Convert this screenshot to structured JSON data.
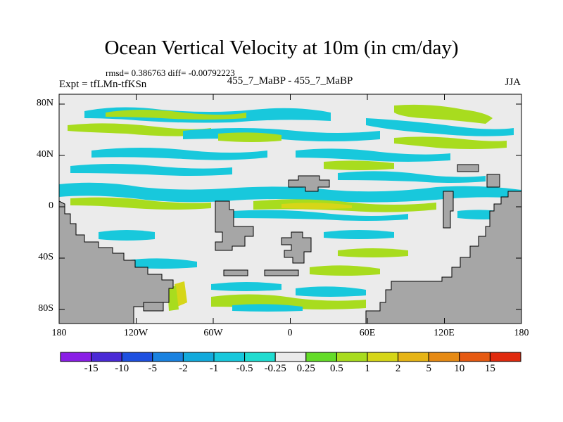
{
  "title": "Ocean Vertical Velocity at 10m (in cm/day)",
  "stats_line": "rmsd= 0.386763 diff= -0.00792223",
  "expt_line": "Expt = tfLMn-tfKSn",
  "center_label": "455_7_MaBP - 455_7_MaBP",
  "season": "JJA",
  "y_ticks": [
    "80N",
    "40N",
    "0",
    "40S",
    "80S"
  ],
  "x_ticks": [
    "180",
    "120W",
    "60W",
    "0",
    "60E",
    "120E",
    "180"
  ],
  "colorbar": {
    "labels": [
      "-15",
      "-10",
      "-5",
      "-2",
      "-1",
      "-0.5",
      "-0.25",
      "0.25",
      "0.5",
      "1",
      "2",
      "5",
      "10",
      "15"
    ],
    "colors": [
      "#8a1ee6",
      "#4a2ad6",
      "#1e50e0",
      "#1a82e0",
      "#12aadc",
      "#18c8dc",
      "#20dcd0",
      "#ebebeb",
      "#64dc28",
      "#a8dc1e",
      "#d6d618",
      "#e6b416",
      "#e68a14",
      "#e65a12",
      "#e02a0e"
    ]
  },
  "colors": {
    "land": "#a6a6a6",
    "near_zero": "#ebebeb",
    "cyan": "#18c8dc",
    "green": "#a8dc1e",
    "yellow": "#d6d618"
  }
}
